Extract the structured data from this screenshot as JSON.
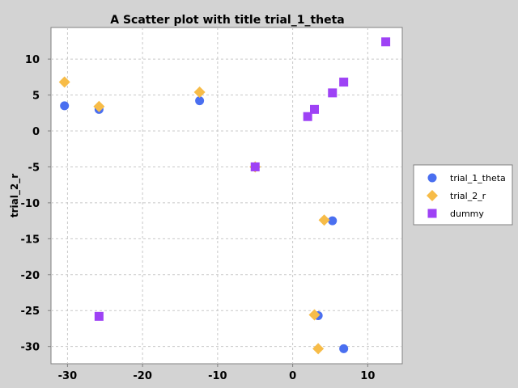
{
  "chart_data": {
    "type": "scatter",
    "title": "A Scatter plot with title trial_1_theta",
    "xlabel": "",
    "ylabel": "trial_2_r",
    "xlim": [
      -32.2,
      14.6
    ],
    "ylim": [
      -32.4,
      14.4
    ],
    "x_ticks": [
      -30,
      -20,
      -10,
      0,
      10
    ],
    "y_ticks": [
      10,
      5,
      0,
      -5,
      -10,
      -15,
      -20,
      -25,
      -30
    ],
    "grid": true,
    "legend_position": "right",
    "series": [
      {
        "name": "trial_1_theta",
        "marker": "circle",
        "color": "#4a6ff0",
        "points": [
          {
            "x": -30.4,
            "y": 3.5
          },
          {
            "x": -25.8,
            "y": 3.0
          },
          {
            "x": -12.4,
            "y": 4.2
          },
          {
            "x": -5.0,
            "y": -5.0
          },
          {
            "x": 5.3,
            "y": -12.5
          },
          {
            "x": 3.4,
            "y": -25.7
          },
          {
            "x": 6.8,
            "y": -30.3
          }
        ]
      },
      {
        "name": "trial_2_r",
        "marker": "diamond",
        "color": "#f7bc48",
        "points": [
          {
            "x": -30.4,
            "y": 6.8
          },
          {
            "x": -25.8,
            "y": 3.4
          },
          {
            "x": -12.4,
            "y": 5.4
          },
          {
            "x": -5.0,
            "y": -5.0
          },
          {
            "x": 4.2,
            "y": -12.4
          },
          {
            "x": 2.9,
            "y": -25.6
          },
          {
            "x": 3.4,
            "y": -30.3
          }
        ]
      },
      {
        "name": "dummy",
        "marker": "square",
        "color": "#9e42f5",
        "points": [
          {
            "x": 12.4,
            "y": 12.4
          },
          {
            "x": 6.8,
            "y": 6.8
          },
          {
            "x": 5.3,
            "y": 5.3
          },
          {
            "x": 2.9,
            "y": 3.0
          },
          {
            "x": 2.0,
            "y": 2.0
          },
          {
            "x": -5.0,
            "y": -5.0
          },
          {
            "x": -25.8,
            "y": -25.8
          }
        ]
      }
    ]
  }
}
